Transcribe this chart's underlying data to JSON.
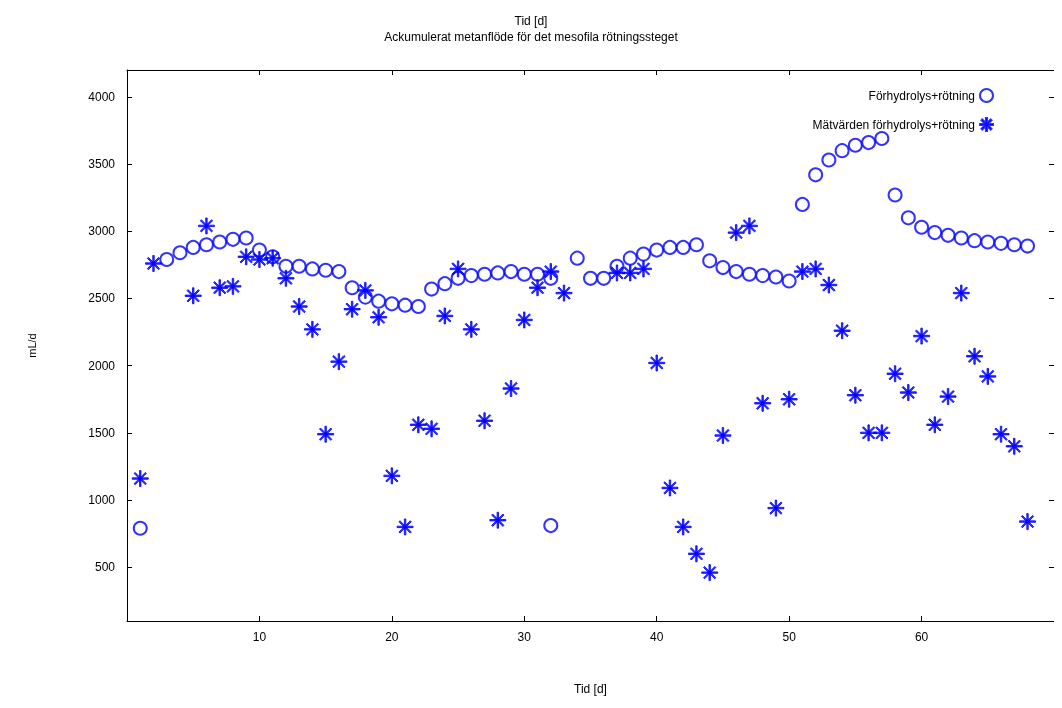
{
  "chart_data": {
    "type": "scatter",
    "title": "Tid [d]",
    "subtitle": "Ackumulerat metanflöde för det mesofila rötningssteget",
    "xlabel": "Tid [d]",
    "ylabel": "mL/d",
    "xlim": [
      0,
      70
    ],
    "xticks": [
      10,
      20,
      30,
      40,
      50,
      60
    ],
    "ylim": [
      100,
      4200
    ],
    "yticks": [
      500,
      1000,
      1500,
      2000,
      2500,
      3000,
      3500,
      4000
    ],
    "grid": false,
    "legend": "top right",
    "series": [
      {
        "name": "Förhydrolys+rötning",
        "color": "#0000ff",
        "marker": "circle",
        "x": [
          1,
          3,
          4,
          5,
          6,
          7,
          8,
          9,
          10,
          11,
          12,
          13,
          14,
          15,
          16,
          17,
          18,
          19,
          20,
          21,
          22,
          23,
          24,
          25,
          26,
          27,
          28,
          29,
          30,
          31,
          32,
          32,
          34,
          35,
          36,
          37,
          38,
          39,
          40,
          41,
          42,
          43,
          44,
          45,
          46,
          47,
          48,
          49,
          50,
          51,
          52,
          53,
          54,
          55,
          56,
          57,
          58,
          59,
          60,
          61,
          62,
          63,
          64,
          65,
          66,
          67,
          68
        ],
        "values": [
          790,
          2790,
          2840,
          2880,
          2900,
          2920,
          2940,
          2950,
          2860,
          2810,
          2740,
          2740,
          2720,
          2710,
          2700,
          2580,
          2510,
          2480,
          2460,
          2450,
          2440,
          2570,
          2610,
          2650,
          2670,
          2680,
          2690,
          2700,
          2680,
          2680,
          2650,
          810,
          2800,
          2650,
          2650,
          2740,
          2800,
          2830,
          2860,
          2880,
          2880,
          2900,
          2780,
          2730,
          2700,
          2680,
          2670,
          2660,
          2630,
          3200,
          3420,
          3530,
          3600,
          3640,
          3660,
          3690,
          3270,
          3100,
          3030,
          2990,
          2970,
          2950,
          2930,
          2920,
          2910,
          2900,
          2890
        ]
      },
      {
        "name": "Mätvärden förhydrolys+rötning",
        "color": "#0000ff",
        "marker": "star",
        "x": [
          1,
          2,
          5,
          6,
          7,
          8,
          9,
          10,
          11,
          12,
          13,
          14,
          15,
          16,
          17,
          18,
          19,
          20,
          21,
          22,
          23,
          24,
          25,
          26,
          27,
          28,
          29,
          30,
          31,
          32,
          33,
          37,
          38,
          39,
          40,
          41,
          42,
          43,
          44,
          45,
          46,
          47,
          48,
          49,
          50,
          51,
          52,
          53,
          54,
          55,
          56,
          57,
          58,
          59,
          60,
          61,
          62,
          63,
          64,
          65,
          66,
          67,
          68
        ],
        "values": [
          1160,
          2760,
          2520,
          3040,
          2580,
          2590,
          2810,
          2790,
          2800,
          2650,
          2440,
          2270,
          1490,
          2030,
          2420,
          2560,
          2360,
          1180,
          800,
          1560,
          1530,
          2370,
          2720,
          2270,
          1590,
          850,
          1830,
          2340,
          2580,
          2700,
          2540,
          2690,
          2690,
          2720,
          2020,
          1090,
          800,
          600,
          460,
          1480,
          2990,
          3040,
          1720,
          940,
          1750,
          2700,
          2720,
          2600,
          2260,
          1780,
          1500,
          1500,
          1940,
          1800,
          2220,
          1560,
          1770,
          2540,
          2070,
          1920,
          1490,
          1400,
          840
        ]
      }
    ]
  }
}
